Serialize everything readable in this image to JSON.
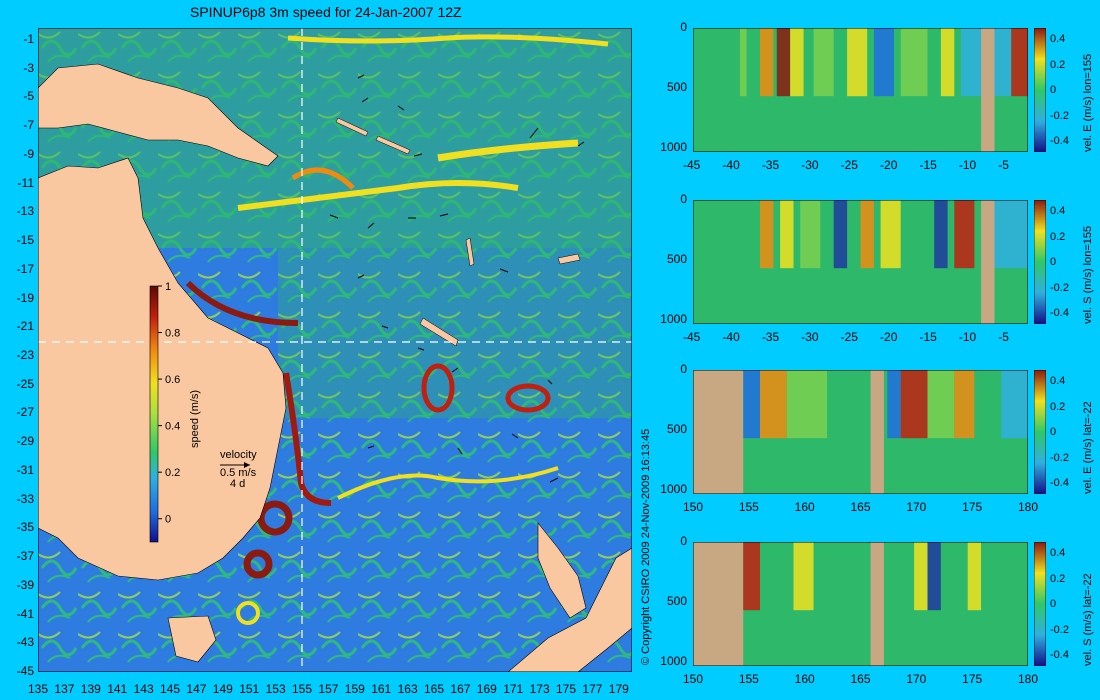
{
  "title": "SPINUP6p8 3m speed for 24-Jan-2007 12Z",
  "copyright": "© Copyright CSIRO 2009   24-Nov-2009 16:13:45",
  "colors": {
    "background": "#00CCFF",
    "land": "#F9C8A0",
    "section_land": "#C8A882",
    "ocean_mid": "#2EB86A",
    "ocean_low": "#2F7CE0"
  },
  "map": {
    "lon_ticks": [
      "135",
      "137",
      "139",
      "141",
      "143",
      "145",
      "147",
      "149",
      "151",
      "153",
      "155",
      "157",
      "159",
      "161",
      "163",
      "165",
      "167",
      "169",
      "171",
      "173",
      "175",
      "177",
      "179"
    ],
    "lat_ticks": [
      "-1",
      "-3",
      "-5",
      "-7",
      "-9",
      "-11",
      "-13",
      "-15",
      "-17",
      "-19",
      "-21",
      "-23",
      "-25",
      "-27",
      "-29",
      "-31",
      "-33",
      "-35",
      "-37",
      "-39",
      "-41",
      "-43",
      "-45"
    ],
    "section_lon": 155,
    "section_lat": -22,
    "colorbar": {
      "label": "speed (m/s)",
      "ticks": [
        "1",
        "0.8",
        "0.6",
        "0.4",
        "0.2",
        "0"
      ],
      "range": [
        -0.1,
        1
      ]
    },
    "velocity_legend": {
      "title": "velocity",
      "speed": "0.5 m/s",
      "interval": "4 d"
    }
  },
  "sections": [
    {
      "label": "vel. E (m/s) lon=155",
      "x_ticks": [
        "-45",
        "-40",
        "-35",
        "-30",
        "-25",
        "-20",
        "-15",
        "-10",
        "-5"
      ],
      "y_ticks": [
        "0",
        "500",
        "1000"
      ],
      "cbar_ticks": [
        "0.4",
        "0.2",
        "0",
        "-0.2",
        "-0.4"
      ]
    },
    {
      "label": "vel. S (m/s) lon=155",
      "x_ticks": [
        "-45",
        "-40",
        "-35",
        "-30",
        "-25",
        "-20",
        "-15",
        "-10",
        "-5"
      ],
      "y_ticks": [
        "0",
        "500",
        "1000"
      ],
      "cbar_ticks": [
        "0.4",
        "0.2",
        "0",
        "-0.2",
        "-0.4"
      ]
    },
    {
      "label": "vel. E (m/s) lat=-22",
      "x_ticks": [
        "150",
        "155",
        "160",
        "165",
        "170",
        "175",
        "180"
      ],
      "y_ticks": [
        "0",
        "500",
        "1000"
      ],
      "cbar_ticks": [
        "0.4",
        "0.2",
        "0",
        "-0.2",
        "-0.4"
      ]
    },
    {
      "label": "vel. S (m/s) lat=-22",
      "x_ticks": [
        "150",
        "155",
        "160",
        "165",
        "170",
        "175",
        "180"
      ],
      "y_ticks": [
        "0",
        "500",
        "1000"
      ],
      "cbar_ticks": [
        "0.4",
        "0.2",
        "0",
        "-0.2",
        "-0.4"
      ]
    }
  ]
}
